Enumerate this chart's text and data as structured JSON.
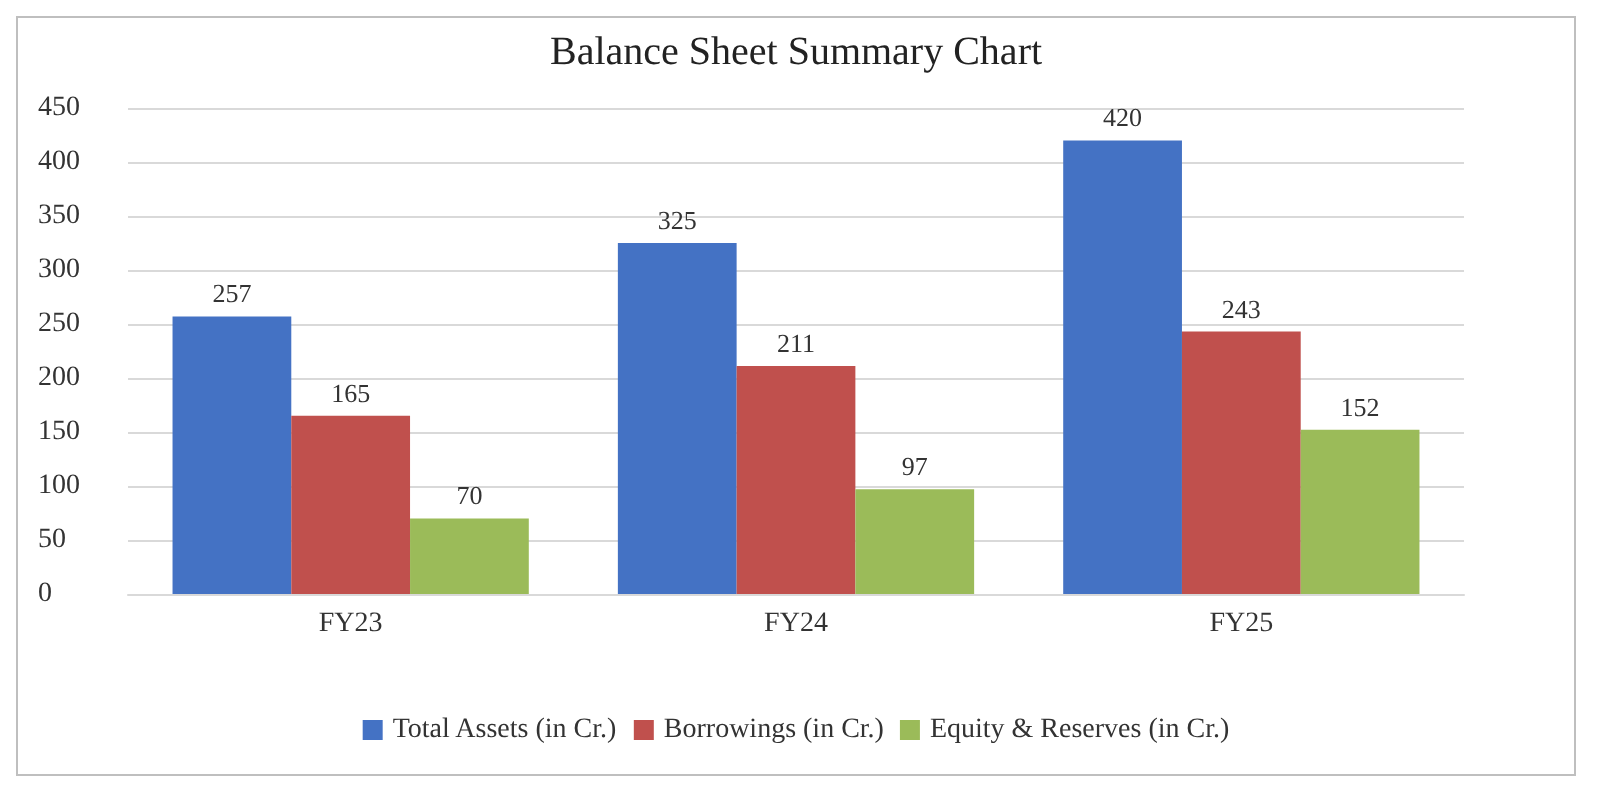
{
  "chart_data": {
    "type": "bar",
    "title": "Balance Sheet Summary Chart",
    "categories": [
      "FY23",
      "FY24",
      "FY25"
    ],
    "series": [
      {
        "name": "Total Assets (in Cr.)",
        "color": "#4472c4",
        "values": [
          257,
          325,
          420
        ]
      },
      {
        "name": "Borrowings (in Cr.)",
        "color": "#c0504d",
        "values": [
          165,
          211,
          243
        ]
      },
      {
        "name": "Equity & Reserves (in Cr.)",
        "color": "#9bbb59",
        "values": [
          70,
          97,
          152
        ]
      }
    ],
    "ylim": [
      0,
      450
    ],
    "yticks": [
      0,
      50,
      100,
      150,
      200,
      250,
      300,
      350,
      400,
      450
    ],
    "grid": "y",
    "legend": "bottom",
    "data_labels": true
  }
}
